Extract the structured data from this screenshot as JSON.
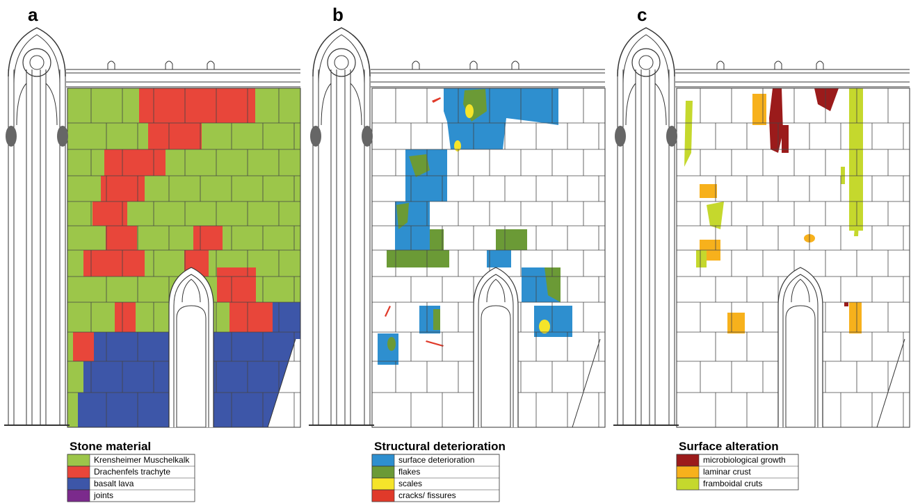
{
  "panels": [
    {
      "label": "a",
      "legend": {
        "title": "Stone material",
        "items": [
          {
            "label": "Krensheimer Muschelkalk",
            "color": "#9cc64a"
          },
          {
            "label": "Drachenfels trachyte",
            "color": "#e8463a"
          },
          {
            "label": "basalt lava",
            "color": "#3d56a8"
          },
          {
            "label": "joints",
            "color": "#7b2a8c"
          }
        ]
      }
    },
    {
      "label": "b",
      "legend": {
        "title": "Structural deterioration",
        "items": [
          {
            "label": "surface deterioration",
            "color": "#2e8fcf"
          },
          {
            "label": "flakes",
            "color": "#6b9a36"
          },
          {
            "label": "scales",
            "color": "#f5e42a"
          },
          {
            "label": "cracks/ fissures",
            "color": "#e03a2a"
          }
        ]
      }
    },
    {
      "label": "c",
      "legend": {
        "title": "Surface alteration",
        "items": [
          {
            "label": "microbiological growth",
            "color": "#9b1b1b"
          },
          {
            "label": "laminar crust",
            "color": "#f7b11c"
          },
          {
            "label": "framboidal cruts",
            "color": "#c5d82d"
          }
        ]
      }
    }
  ]
}
